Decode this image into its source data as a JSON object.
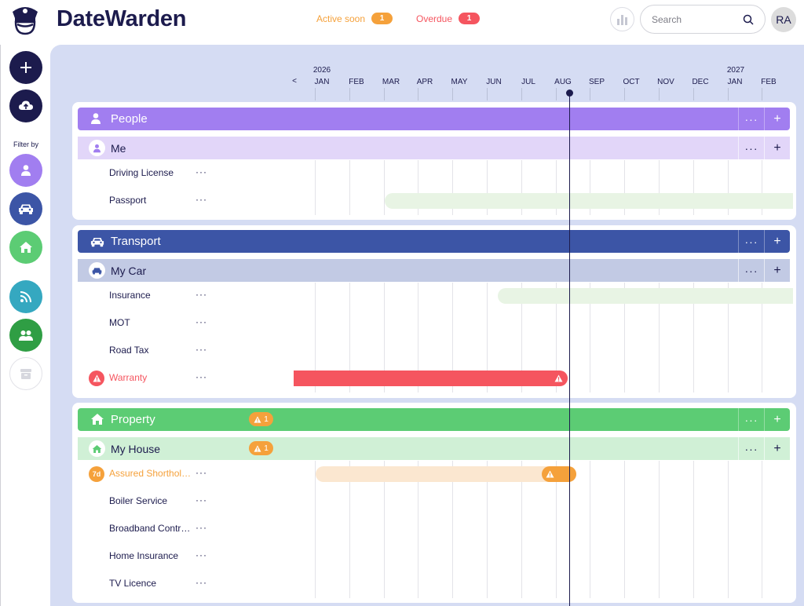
{
  "header": {
    "brand": "DateWarden",
    "active_soon_label": "Active soon",
    "active_soon_count": "1",
    "overdue_label": "Overdue",
    "overdue_count": "1",
    "search_placeholder": "Search",
    "avatar_initials": "RA"
  },
  "sidebar": {
    "filter_label": "Filter by",
    "buttons": [
      "plus-icon",
      "upload-cloud-icon",
      "person-icon",
      "car-icon",
      "home-icon",
      "rss-icon",
      "people-icon",
      "archive-icon"
    ]
  },
  "timeline": {
    "prev_arrow": "<",
    "years": [
      "2026",
      "2027"
    ],
    "months": [
      "JAN",
      "FEB",
      "MAR",
      "APR",
      "MAY",
      "JUN",
      "JUL",
      "AUG",
      "SEP",
      "OCT",
      "NOV",
      "DEC",
      "JAN",
      "FEB"
    ],
    "today_month": "AUG"
  },
  "groups": [
    {
      "label": "People",
      "color": "#a17ef0",
      "sub": {
        "label": "Me",
        "color": "#e2d6f9",
        "rows": [
          {
            "label": "Driving License",
            "status": "none"
          },
          {
            "label": "Passport",
            "status": "future",
            "bar_color": "#e8f4e4"
          }
        ]
      }
    },
    {
      "label": "Transport",
      "color": "#3c55a6",
      "sub": {
        "label": "My Car",
        "color": "#c2cae4",
        "rows": [
          {
            "label": "Insurance",
            "status": "future",
            "bar_color": "#e8f4e4"
          },
          {
            "label": "MOT",
            "status": "none"
          },
          {
            "label": "Road Tax",
            "status": "none"
          },
          {
            "label": "Warranty",
            "status": "overdue",
            "bar_color": "#f5555f"
          }
        ]
      }
    },
    {
      "label": "Property",
      "color": "#5ccc74",
      "badge_count": "1",
      "sub": {
        "label": "My House",
        "color": "#d0f0d6",
        "badge_count": "1",
        "rows": [
          {
            "label": "Assured Shorthold Tenancy",
            "status": "active-soon",
            "days": "7d",
            "bar_color": "#fbe7d0"
          },
          {
            "label": "Boiler Service",
            "status": "none"
          },
          {
            "label": "Broadband Contract",
            "status": "none"
          },
          {
            "label": "Home Insurance",
            "status": "none"
          },
          {
            "label": "TV Licence",
            "status": "none"
          }
        ]
      }
    }
  ],
  "colors": {
    "overdue": "#f5555f",
    "active_soon": "#f5a13b",
    "navy": "#1c1b4d"
  }
}
